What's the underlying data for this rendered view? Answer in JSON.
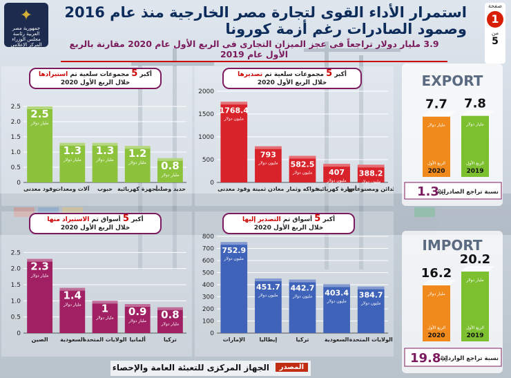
{
  "header": {
    "title": "استمرار الأداء القوى لتجارة مصر الخارجية منذ عام 2016 وصمود الصادرات رغم أزمة كورونا",
    "subtitle": "3.9 مليار دولار تراجعاً فى عجز الميزان التجارى فى الربع الأول عام 2020 مقارنة بالربع الأول عام 2019",
    "page_label": "صفحة",
    "page_num": "1",
    "page_of": "من",
    "page_total": "5",
    "logo_text": "جمهورية مصر العربية رئاسة مجلس الوزراء المركز الإعلامى"
  },
  "panels": {
    "exports_goods": {
      "title_a": "أكبر",
      "title_num": "5",
      "title_b": "مجموعات سلعية تم",
      "title_hl": "تصديرها",
      "period": "خلال الربع الأول 2020"
    },
    "imports_goods": {
      "title_a": "أكبر",
      "title_num": "5",
      "title_b": "مجموعات سلعية تم",
      "title_hl": "استيرادها",
      "period": "خلال الربع الأول 2020"
    },
    "exports_markets": {
      "title_a": "أكبر",
      "title_num": "5",
      "title_b": "أسواق تم",
      "title_hl": "التصدير إليها",
      "period": "خلال الربع الأول 2020"
    },
    "imports_markets": {
      "title_a": "أكبر",
      "title_num": "5",
      "title_b": "أسواق تم",
      "title_hl": "الاستيراد منها",
      "period": "خلال الربع الأول 2020"
    }
  },
  "unit_million": "مليون دولار",
  "unit_billion": "مليار دولار",
  "summary": {
    "export_banner": "EXPORT",
    "import_banner": "IMPORT",
    "export_decline_label": "نسبة تراجع الصادرات",
    "export_decline_value": "1.3",
    "import_decline_label": "نسبة تراجع الواردات",
    "import_decline_value": "19.8",
    "percent_sign": "%",
    "q1_label": "الربع الأول",
    "year_2019": "2019",
    "year_2020": "2020"
  },
  "footer": {
    "source_label": "المصدر",
    "source": "الجهاز المركزى للتعبئة العامة والإحصاء"
  },
  "colors": {
    "export_bar": "#d8232a",
    "import_bar": "#a02063",
    "export_market_bar": "#3f63b8",
    "import_goods_bar": "#8cc23c",
    "orange": "#f08a1c",
    "green": "#7cbf2f"
  },
  "chart_data": [
    {
      "type": "bar",
      "id": "exports_goods",
      "categories": [
        "وقود معدنى",
        "معادن ثمينة",
        "فواكه وثمار",
        "أجهزة كهربائية",
        "لدائن ومصنوعاتها"
      ],
      "values": [
        1768.4,
        793,
        582.5,
        407,
        388.2
      ],
      "value_labels": [
        "1768.4",
        "793",
        "582.5",
        "407",
        "388.2"
      ],
      "ylim": [
        0,
        2000
      ],
      "yticks": [
        "0",
        "500",
        "1000",
        "1500",
        "2000"
      ]
    },
    {
      "type": "bar",
      "id": "imports_goods",
      "categories": [
        "وقود معدنى",
        "آلات ومعدات",
        "حبوب",
        "أجهزة كهربائية",
        "حديد وصلب"
      ],
      "values": [
        2.5,
        1.3,
        1.3,
        1.2,
        0.8
      ],
      "value_labels": [
        "2.5",
        "1.3",
        "1.3",
        "1.2",
        "0.8"
      ],
      "ylim": [
        0,
        3
      ],
      "yticks": [
        "0",
        "0.5",
        "1.0",
        "1.5",
        "2.0",
        "2.5"
      ]
    },
    {
      "type": "bar",
      "id": "exports_markets",
      "categories": [
        "الإمارات",
        "إيطاليا",
        "تركيا",
        "السعودية",
        "الولايات المتحدة"
      ],
      "values": [
        752.9,
        451.7,
        442.7,
        403.4,
        384.7
      ],
      "value_labels": [
        "752.9",
        "451.7",
        "442.7",
        "403.4",
        "384.7"
      ],
      "ylim": [
        0,
        800
      ],
      "yticks": [
        "0",
        "100",
        "200",
        "300",
        "400",
        "500",
        "600",
        "700",
        "800"
      ]
    },
    {
      "type": "bar",
      "id": "imports_markets",
      "categories": [
        "الصين",
        "السعودية",
        "الولايات المتحدة",
        "ألمانيا",
        "تركيا"
      ],
      "values": [
        2.3,
        1.4,
        1,
        0.9,
        0.8
      ],
      "value_labels": [
        "2.3",
        "1.4",
        "1",
        "0.9",
        "0.8"
      ],
      "ylim": [
        0,
        3
      ],
      "yticks": [
        "0",
        "0.5",
        "1.0",
        "1.5",
        "2.0",
        "2.5"
      ]
    },
    {
      "type": "bar",
      "id": "exports_total",
      "categories": [
        "2020",
        "2019"
      ],
      "values": [
        7.7,
        7.8
      ],
      "value_labels": [
        "7.7",
        "7.8"
      ]
    },
    {
      "type": "bar",
      "id": "imports_total",
      "categories": [
        "2020",
        "2019"
      ],
      "values": [
        16.2,
        20.2
      ],
      "value_labels": [
        "16.2",
        "20.2"
      ]
    }
  ]
}
